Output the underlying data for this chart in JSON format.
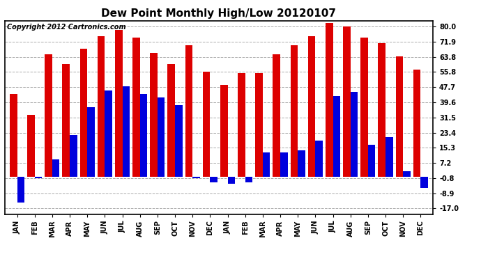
{
  "title": "Dew Point Monthly High/Low 20120107",
  "copyright": "Copyright 2012 Cartronics.com",
  "months": [
    "JAN",
    "FEB",
    "MAR",
    "APR",
    "MAY",
    "JUN",
    "JUL",
    "AUG",
    "SEP",
    "OCT",
    "NOV",
    "DEC",
    "JAN",
    "FEB",
    "MAR",
    "APR",
    "MAY",
    "JUN",
    "JUL",
    "AUG",
    "SEP",
    "OCT",
    "NOV",
    "DEC"
  ],
  "highs": [
    44,
    33,
    65,
    60,
    68,
    75,
    78,
    74,
    66,
    60,
    70,
    56,
    49,
    55,
    55,
    65,
    70,
    75,
    82,
    80,
    74,
    71,
    64,
    57
  ],
  "lows": [
    -14,
    -1,
    9,
    22,
    37,
    46,
    48,
    44,
    42,
    38,
    -1,
    -3,
    -4,
    -3,
    13,
    13,
    14,
    19,
    43,
    45,
    17,
    21,
    3,
    -6
  ],
  "high_color": "#dd0000",
  "low_color": "#0000dd",
  "bg_color": "#ffffff",
  "grid_color": "#aaaaaa",
  "yticks": [
    -17.0,
    -8.9,
    -0.8,
    7.2,
    15.3,
    23.4,
    31.5,
    39.6,
    47.7,
    55.8,
    63.8,
    71.9,
    80.0
  ],
  "ylim": [
    -20,
    83
  ],
  "title_fontsize": 11,
  "tick_fontsize": 7,
  "copyright_fontsize": 7,
  "bar_width": 0.42,
  "figsize": [
    6.9,
    3.75
  ],
  "dpi": 100
}
